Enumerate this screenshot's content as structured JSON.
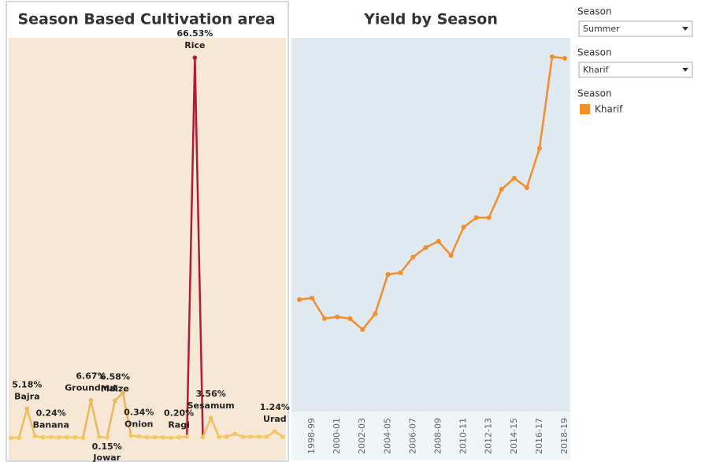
{
  "chart_data": [
    {
      "type": "line",
      "title": "Season Based Cultivation area",
      "categories": [
        null,
        null,
        "Bajra",
        null,
        null,
        "Banana",
        null,
        null,
        null,
        null,
        "Groundnut",
        null,
        "Jowar",
        "Maize",
        null,
        null,
        "Onion",
        null,
        null,
        null,
        null,
        "Ragi",
        null,
        "Rice",
        null,
        "Sesamum",
        null,
        null,
        null,
        null,
        null,
        null,
        null,
        "Urad",
        null
      ],
      "values": [
        0.1,
        0.1,
        5.18,
        0.4,
        0.2,
        0.24,
        0.2,
        0.2,
        0.2,
        0.1,
        6.67,
        0.3,
        0.15,
        6.58,
        8.0,
        0.5,
        0.34,
        0.2,
        0.2,
        0.2,
        0.1,
        0.2,
        0.3,
        66.53,
        0.2,
        3.56,
        0.3,
        0.3,
        0.8,
        0.3,
        0.3,
        0.3,
        0.3,
        1.24,
        0.3
      ],
      "value_labels": [
        null,
        null,
        "5.18%",
        null,
        null,
        "0.24%",
        null,
        null,
        null,
        null,
        "6.67%",
        null,
        "0.15%",
        "6.58%",
        null,
        null,
        "0.34%",
        null,
        null,
        null,
        null,
        "0.20%",
        null,
        "66.53%",
        null,
        "3.56%",
        null,
        null,
        null,
        null,
        null,
        null,
        null,
        "1.24%",
        null
      ],
      "colors": [
        "#f5c860",
        "#b31b34"
      ],
      "ylim": [
        -3.3,
        70
      ]
    },
    {
      "type": "line",
      "title": "Yield by Season",
      "categories": [
        null,
        "1998-99",
        null,
        "2000-01",
        null,
        "2002-03",
        null,
        "2004-05",
        null,
        "2006-07",
        null,
        "2008-09",
        null,
        "2010-11",
        null,
        "2012-13",
        null,
        "2014-15",
        null,
        "2016-17",
        null,
        "2018-19"
      ],
      "values": [
        0.7,
        0.71,
        0.58,
        0.59,
        0.58,
        0.51,
        0.61,
        0.86,
        0.87,
        0.97,
        1.03,
        1.07,
        0.98,
        1.16,
        1.22,
        1.22,
        1.4,
        1.47,
        1.41,
        1.66,
        2.24,
        2.23
      ],
      "color": "#f28e2b",
      "ylim": [
        0,
        2.36
      ]
    }
  ],
  "filters": [
    {
      "label": "Season",
      "value": "Summer"
    },
    {
      "label": "Season",
      "value": "Kharif"
    }
  ],
  "legend": {
    "title": "Season",
    "items": [
      "Kharif"
    ],
    "color": "#f28e2b"
  }
}
